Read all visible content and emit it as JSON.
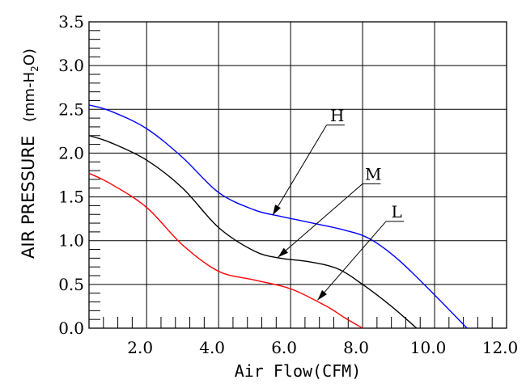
{
  "chart_data": {
    "type": "line",
    "title": "",
    "xlabel": "Air Flow(CFM)",
    "ylabel": "AIR PRESSURE (mm-H2O)",
    "ylabel_main": "AIR PRESSURE",
    "ylabel_unit_prefix": "(mm-H",
    "ylabel_unit_sub": "2",
    "ylabel_unit_suffix": "O)",
    "xlim": [
      0.4,
      12.0
    ],
    "ylim": [
      0.0,
      3.5
    ],
    "xticks": [
      2.0,
      4.0,
      6.0,
      8.0,
      10.0,
      12.0
    ],
    "xtick_labels": [
      "2.0",
      "4.0",
      "6.0",
      "8.0",
      "10.0",
      "12.0"
    ],
    "yticks": [
      0.0,
      0.5,
      1.0,
      1.5,
      2.0,
      2.5,
      3.0,
      3.5
    ],
    "ytick_labels": [
      "0.0",
      "0.5",
      "1.0",
      "1.5",
      "2.0",
      "2.5",
      "3.0",
      "3.5"
    ],
    "grid": true,
    "series": [
      {
        "name": "H",
        "color": "#0000ff",
        "x": [
          0.4,
          1.0,
          2.0,
          3.0,
          4.0,
          5.0,
          5.7,
          6.5,
          7.5,
          8.2,
          9.0,
          10.0,
          10.9
        ],
        "y": [
          2.55,
          2.48,
          2.28,
          1.95,
          1.55,
          1.35,
          1.28,
          1.21,
          1.12,
          1.02,
          0.78,
          0.38,
          0.0
        ]
      },
      {
        "name": "M",
        "color": "#000000",
        "x": [
          0.4,
          1.0,
          2.0,
          3.0,
          4.0,
          5.0,
          5.7,
          6.5,
          7.3,
          8.0,
          8.8,
          9.5
        ],
        "y": [
          2.2,
          2.12,
          1.92,
          1.6,
          1.15,
          0.88,
          0.8,
          0.76,
          0.68,
          0.5,
          0.25,
          0.0
        ]
      },
      {
        "name": "L",
        "color": "#ff0000",
        "x": [
          0.4,
          1.0,
          2.0,
          3.0,
          4.0,
          5.0,
          6.0,
          7.0,
          7.5,
          8.0
        ],
        "y": [
          1.77,
          1.65,
          1.38,
          0.95,
          0.65,
          0.55,
          0.45,
          0.25,
          0.12,
          0.0
        ]
      }
    ],
    "annotations": [
      {
        "label": "H",
        "target": [
          5.5,
          1.29
        ],
        "text_at": [
          7.0,
          2.32
        ],
        "bar_to": 7.5
      },
      {
        "label": "M",
        "target": [
          5.65,
          0.81
        ],
        "text_at": [
          8.0,
          1.65
        ],
        "bar_to": 8.5
      },
      {
        "label": "L",
        "target": [
          6.75,
          0.32
        ],
        "text_at": [
          8.65,
          1.22
        ],
        "bar_to": 9.15
      }
    ]
  }
}
